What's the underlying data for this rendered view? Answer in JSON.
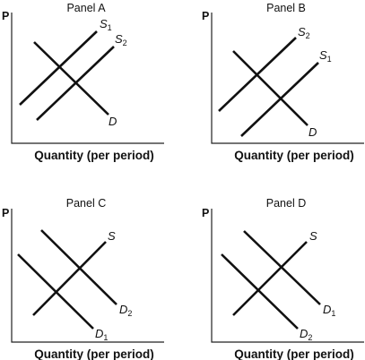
{
  "axis_labels": {
    "y": "P",
    "x": "Quantity (per period)"
  },
  "panels": [
    {
      "title": "Panel A",
      "curves": [
        {
          "letter": "S",
          "sub": "1"
        },
        {
          "letter": "S",
          "sub": "2"
        },
        {
          "letter": "D",
          "sub": ""
        }
      ]
    },
    {
      "title": "Panel B",
      "curves": [
        {
          "letter": "S",
          "sub": "2"
        },
        {
          "letter": "S",
          "sub": "1"
        },
        {
          "letter": "D",
          "sub": ""
        }
      ]
    },
    {
      "title": "Panel C",
      "curves": [
        {
          "letter": "S",
          "sub": ""
        },
        {
          "letter": "D",
          "sub": "2"
        },
        {
          "letter": "D",
          "sub": "1"
        }
      ]
    },
    {
      "title": "Panel D",
      "curves": [
        {
          "letter": "S",
          "sub": ""
        },
        {
          "letter": "D",
          "sub": "1"
        },
        {
          "letter": "D",
          "sub": "2"
        }
      ]
    }
  ]
}
